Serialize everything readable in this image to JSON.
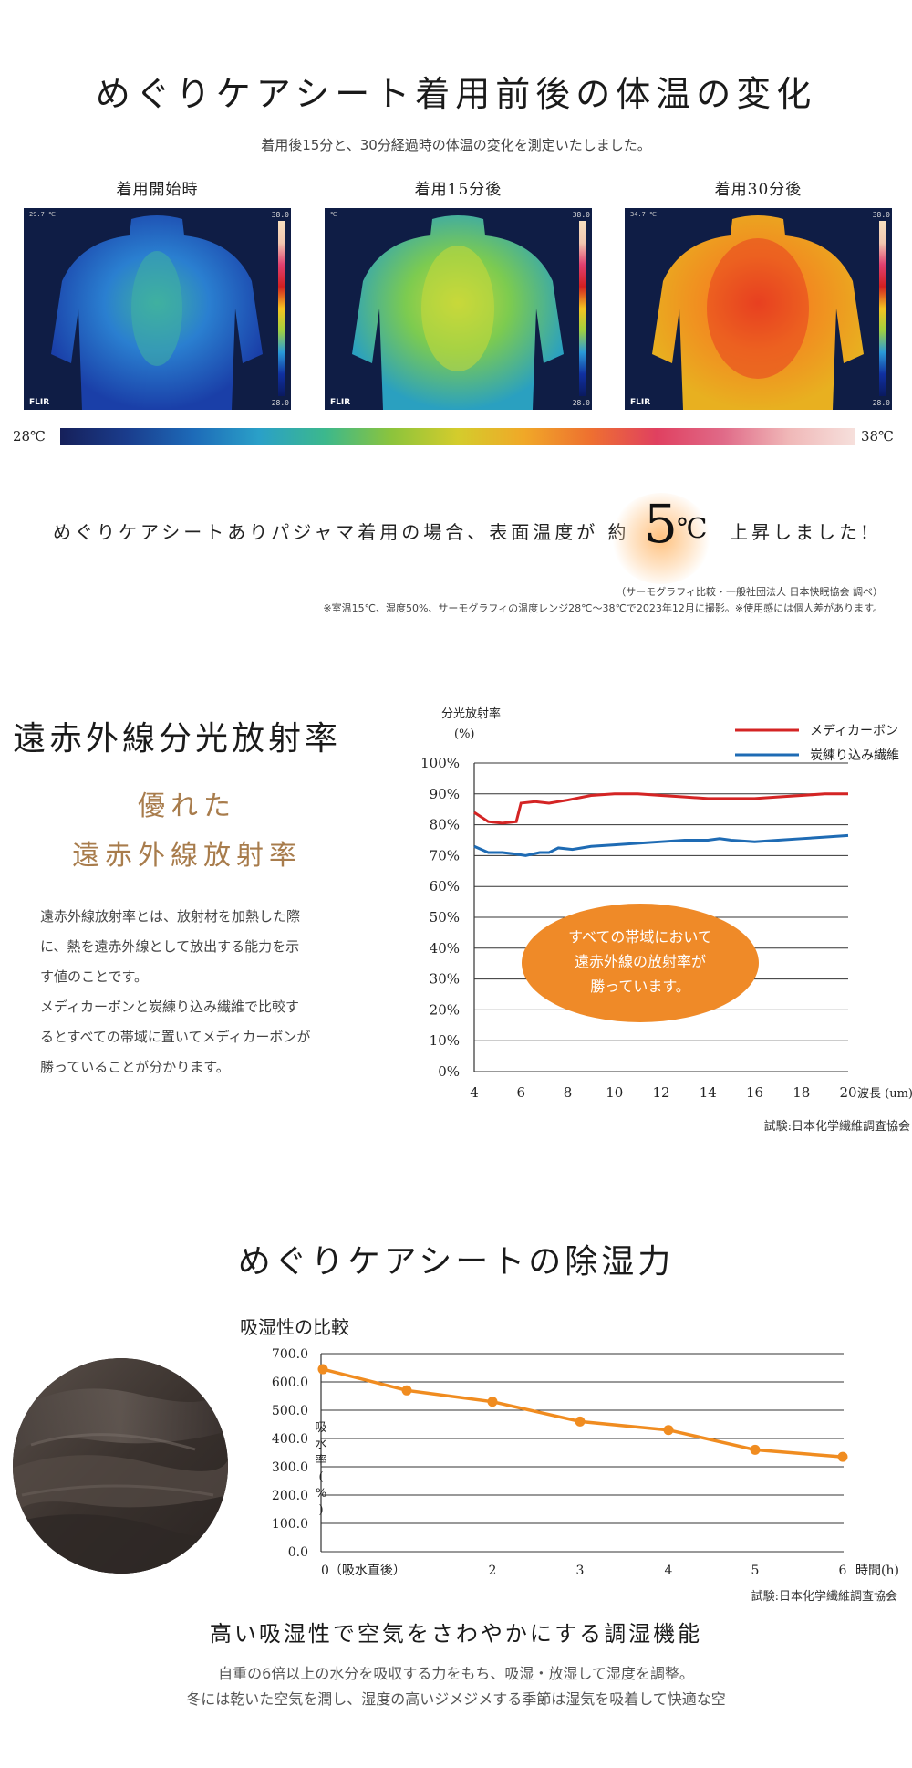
{
  "section1": {
    "title": "めぐりケアシート着用前後の体温の変化",
    "subtitle": "着用後15分と、30分経過時の体温の変化を測定いたしました。",
    "thermo_images": [
      {
        "label": "着用開始時",
        "top_left": "29.7 ℃",
        "high": "38.0",
        "low": "28.0",
        "brand": "FLIR",
        "warmth": 0.15
      },
      {
        "label": "着用15分後",
        "top_left": "℃",
        "high": "38.0",
        "low": "28.0",
        "brand": "FLIR",
        "warmth": 0.45
      },
      {
        "label": "着用30分後",
        "top_left": "34.7 ℃",
        "high": "38.0",
        "low": "28.0",
        "brand": "FLIR",
        "warmth": 0.85
      }
    ],
    "scale_low": "28℃",
    "scale_high": "38℃",
    "claim_pre": "めぐりケアシートありパジャマ着用の場合、表面温度が 約",
    "claim_number": "5",
    "claim_unit": "℃",
    "claim_post": "上昇しました!",
    "note1": "（サーモグラフィ比較・一般社団法人 日本快眠協会 調べ）",
    "note2": "※室温15℃、湿度50%、サーモグラフィの温度レンジ28℃〜38℃で2023年12月に撮影。※使用感には個人差があります。"
  },
  "section2": {
    "title": "遠赤外線分光放射率",
    "sub1": "優れた",
    "sub2": "遠赤外線放射率",
    "body": [
      "遠赤外線放射率とは、放射材を加熱した際",
      "に、熱を遠赤外線として放出する能力を示",
      "す値のことです。",
      "メディカーボンと炭練り込み繊維で比較す",
      "るとすべての帯域に置いてメディカーボンが",
      "勝っていることが分かります。"
    ],
    "callout": [
      "すべての帯域において",
      "遠赤外線の放射率が",
      "勝っています。"
    ],
    "source": "試験:日本化学繊維調査協会"
  },
  "section3": {
    "title": "めぐりケアシートの除湿力",
    "chart_title": "吸湿性の比較",
    "source": "試験:日本化学繊維調査協会",
    "heading": "高い吸湿性で空気をさわやかにする調湿機能",
    "body1": "自重の6倍以上の水分を吸収する力をもち、吸湿・放湿して湿度を調整。",
    "body2": "冬には乾いた空気を潤し、湿度の高いジメジメする季節は湿気を吸着して快適な空"
  },
  "chart_data": [
    {
      "type": "line",
      "title": "",
      "ylabel_lines": [
        "分光放射率",
        "(%)"
      ],
      "xlabel": "波長 (um)",
      "xlim": [
        4,
        20
      ],
      "ylim": [
        0,
        100
      ],
      "x_ticks": [
        4,
        6,
        8,
        10,
        12,
        14,
        16,
        18,
        20
      ],
      "y_ticks": [
        0,
        10,
        20,
        30,
        40,
        50,
        60,
        70,
        80,
        90,
        100
      ],
      "y_tick_suffix": "%",
      "grid": true,
      "legend_position": "top-right",
      "series": [
        {
          "name": "メディカーボン",
          "color": "#d42424",
          "x": [
            4,
            4.6,
            5.2,
            5.8,
            6.0,
            6.6,
            7.2,
            8.0,
            9.0,
            10.0,
            11.0,
            12.0,
            13.0,
            14.0,
            15.0,
            16.0,
            17.0,
            18.0,
            19.0,
            20.0
          ],
          "y": [
            84,
            81,
            80.5,
            81,
            87,
            87.5,
            87,
            88,
            89.5,
            90,
            90,
            89.5,
            89,
            88.5,
            88.5,
            88.5,
            89,
            89.5,
            90,
            90
          ]
        },
        {
          "name": "炭練り込み繊維",
          "color": "#1e6bb4",
          "x": [
            4,
            4.6,
            5.2,
            5.8,
            6.2,
            6.8,
            7.2,
            7.6,
            8.2,
            9.0,
            10.0,
            11.0,
            12.0,
            13.0,
            14.0,
            14.5,
            15.0,
            16.0,
            17.0,
            18.0,
            19.0,
            20.0
          ],
          "y": [
            73,
            71,
            71,
            70.5,
            70,
            71,
            71,
            72.5,
            72,
            73,
            73.5,
            74,
            74.5,
            75,
            75,
            75.5,
            75,
            74.5,
            75,
            75.5,
            76,
            76.5
          ]
        }
      ]
    },
    {
      "type": "line",
      "title": "吸湿性の比較",
      "ylabel": "吸水率(%)",
      "xlabel": "時間(h)",
      "ylim": [
        0,
        700
      ],
      "y_ticks": [
        0,
        100,
        200,
        300,
        400,
        500,
        600,
        700
      ],
      "x_ticks": [
        0,
        2,
        3,
        4,
        5,
        6
      ],
      "x_tick_labels": [
        "0（吸水直後）",
        "2",
        "3",
        "4",
        "5",
        "6"
      ],
      "grid": true,
      "series": [
        {
          "name": "",
          "color": "#f08c20",
          "x": [
            0,
            1,
            2,
            3,
            4,
            5,
            6
          ],
          "y": [
            645,
            570,
            530,
            460,
            430,
            360,
            335
          ]
        }
      ]
    }
  ]
}
